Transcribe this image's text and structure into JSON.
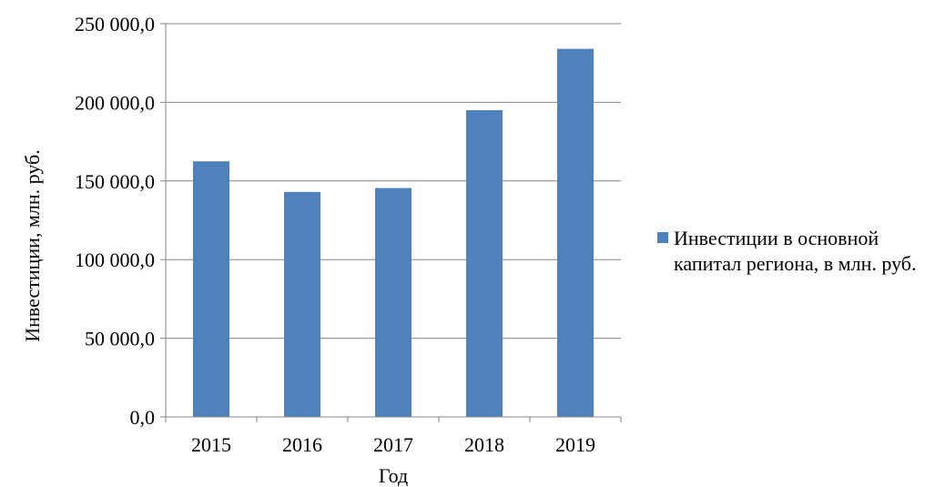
{
  "colors": {
    "bar": "#4F81BD",
    "grid": "#868686",
    "axis": "#868686"
  },
  "chart_data": {
    "type": "bar",
    "categories": [
      "2015",
      "2016",
      "2017",
      "2018",
      "2019"
    ],
    "series": [
      {
        "name": "Инвестиции в основной капитал региона, в млн. руб.",
        "values": [
          162500,
          143000,
          145500,
          195000,
          234000
        ]
      }
    ],
    "y_ticks": [
      "0,0",
      "50 000,0",
      "100 000,0",
      "150 000,0",
      "200 000,0",
      "250 000,0"
    ],
    "xlabel": "Год",
    "ylabel": "Инвестиции, млн. руб.",
    "ylim": [
      0,
      250000
    ],
    "grid": true,
    "legend": "right"
  }
}
